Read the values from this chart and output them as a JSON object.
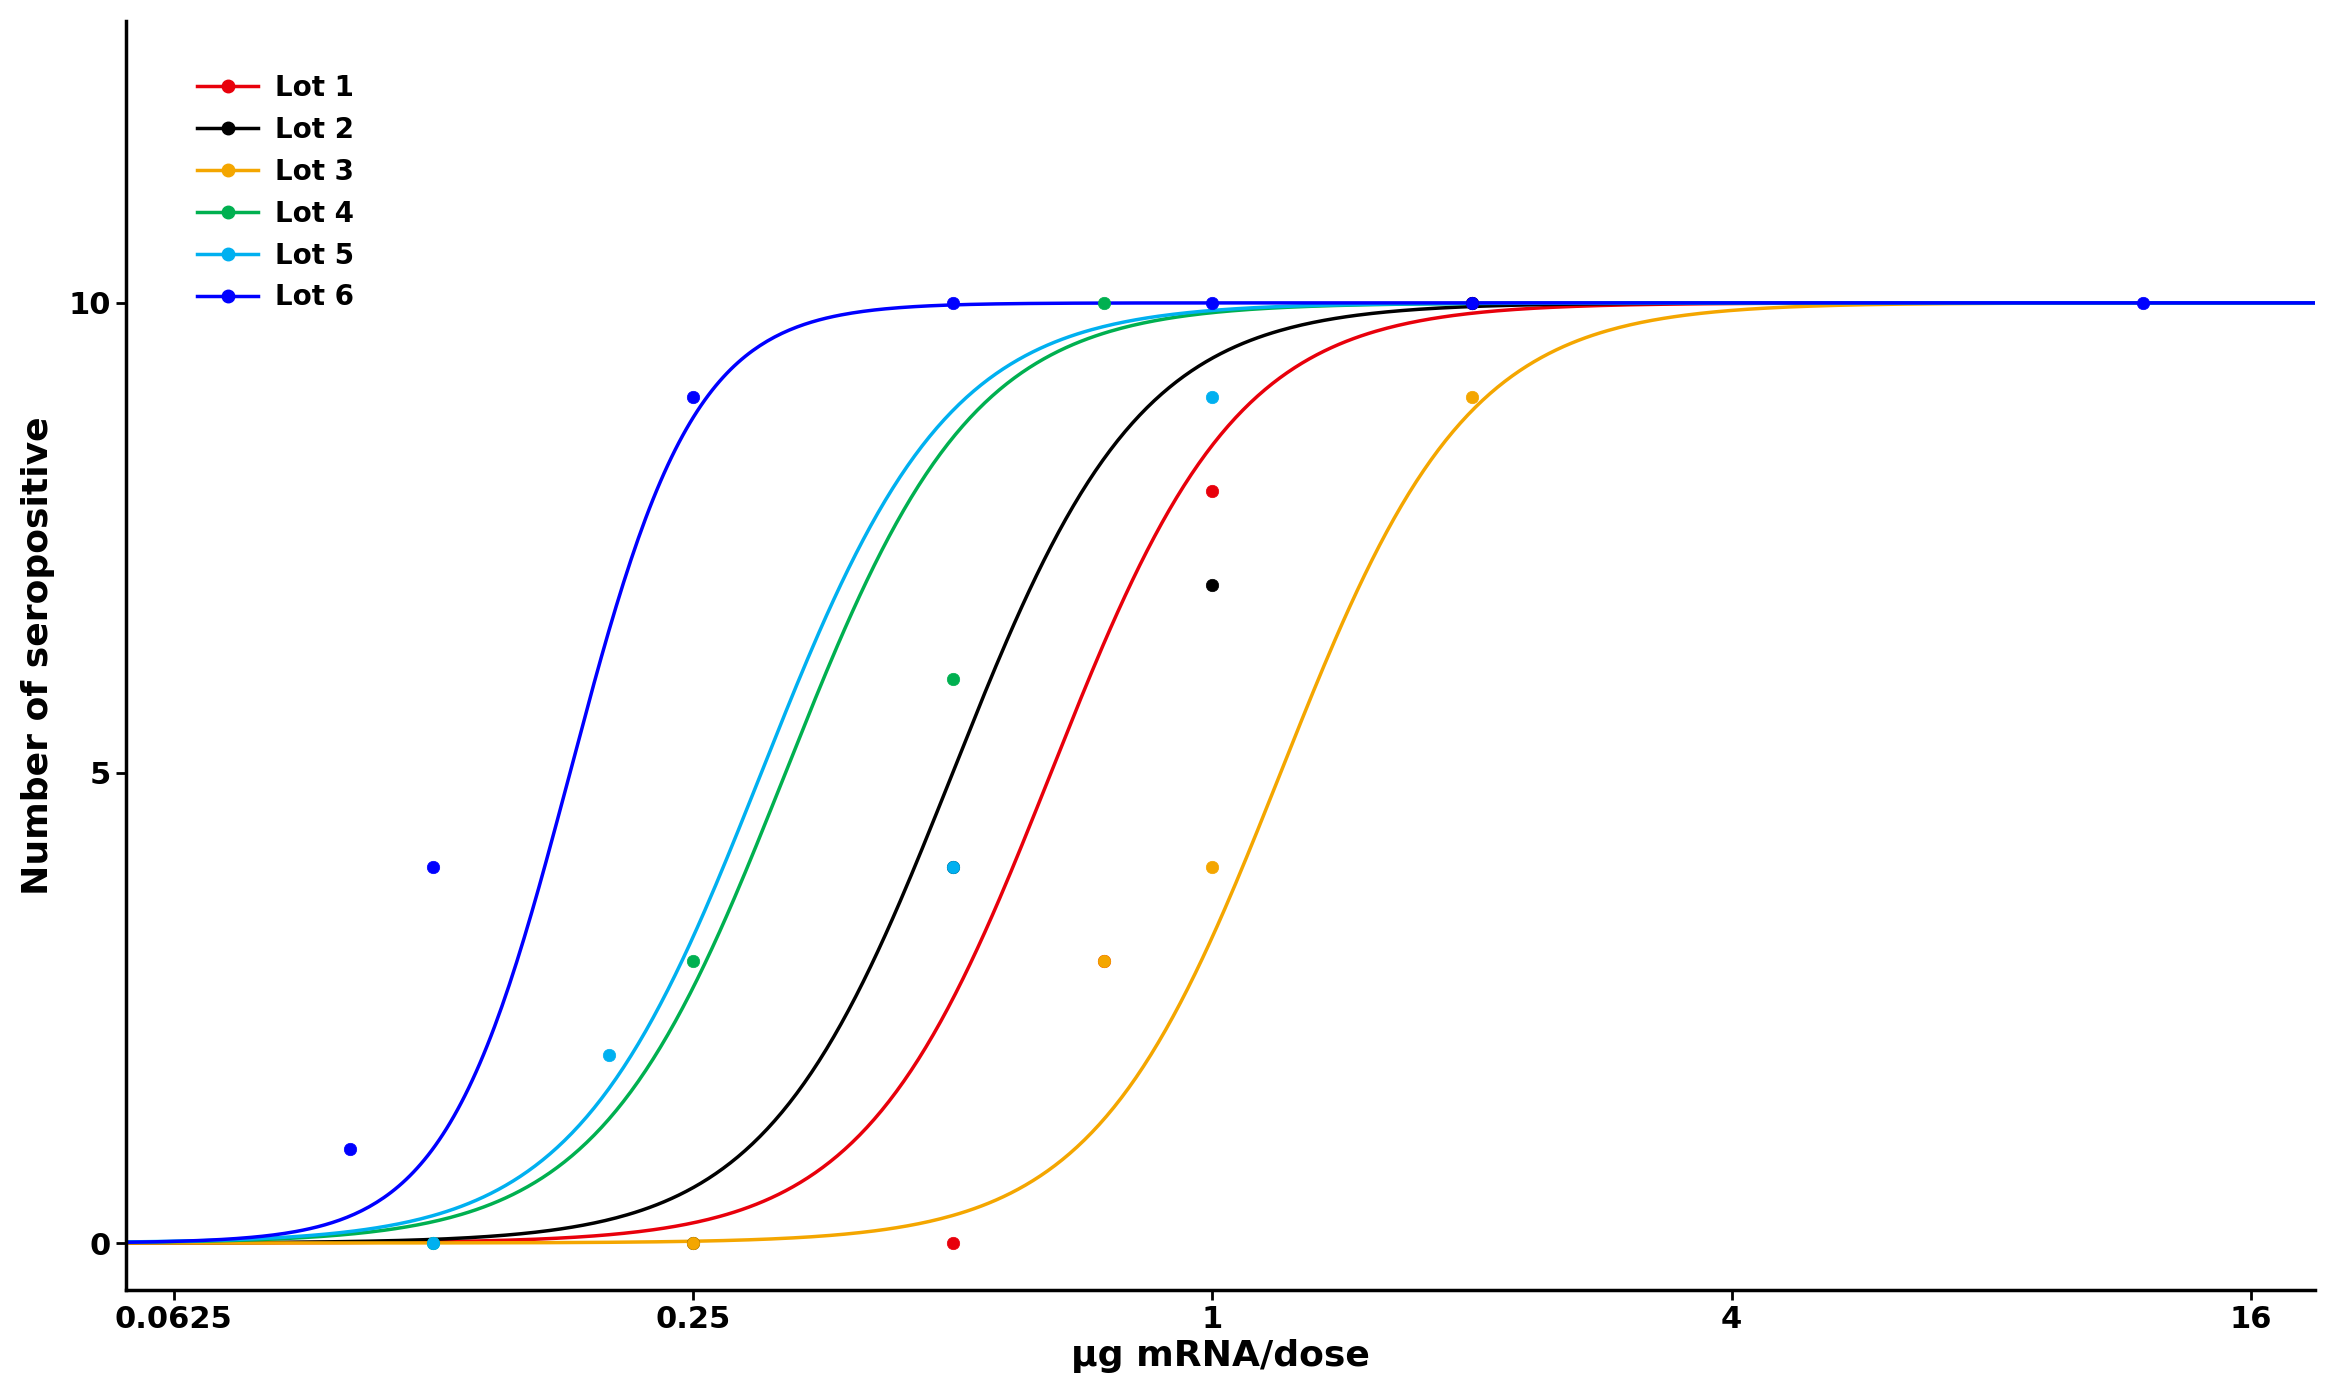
{
  "title": "",
  "xlabel": "μg mRNA/dose",
  "ylabel": "Number of seropositive",
  "xticks": [
    0.0625,
    0.25,
    1,
    4,
    16
  ],
  "xtick_labels": [
    "0.0625",
    "0.25",
    "1",
    "4",
    "16"
  ],
  "yticks": [
    0,
    5,
    10
  ],
  "background_color": "#ffffff",
  "lots": [
    {
      "label": "Lot 1",
      "color": "#e8000b",
      "scatter_x": [
        0.5,
        0.75,
        1.0,
        2.0
      ],
      "scatter_y": [
        0,
        3,
        8,
        10
      ],
      "ec50": 0.65,
      "slope": 4.0
    },
    {
      "label": "Lot 2",
      "color": "#000000",
      "scatter_x": [
        0.25,
        0.5,
        1.0,
        2.0
      ],
      "scatter_y": [
        0,
        4,
        7,
        10
      ],
      "ec50": 0.5,
      "slope": 4.0
    },
    {
      "label": "Lot 3",
      "color": "#f4a600",
      "scatter_x": [
        0.25,
        0.75,
        1.0,
        2.0
      ],
      "scatter_y": [
        0,
        3,
        4,
        9
      ],
      "ec50": 1.2,
      "slope": 4.0
    },
    {
      "label": "Lot 4",
      "color": "#00b050",
      "scatter_x": [
        0.125,
        0.25,
        0.5,
        0.75
      ],
      "scatter_y": [
        0,
        3,
        6,
        10
      ],
      "ec50": 0.32,
      "slope": 4.0
    },
    {
      "label": "Lot 5",
      "color": "#00b0f0",
      "scatter_x": [
        0.125,
        0.2,
        0.5,
        1.0
      ],
      "scatter_y": [
        0,
        2,
        4,
        9
      ],
      "ec50": 0.3,
      "slope": 4.0
    },
    {
      "label": "Lot 6",
      "color": "#0000ff",
      "scatter_x": [
        0.1,
        0.125,
        0.25,
        0.5,
        1.0,
        2.0,
        12.0
      ],
      "scatter_y": [
        1,
        4,
        9,
        10,
        10,
        10,
        10
      ],
      "ec50": 0.18,
      "slope": 6.0
    }
  ],
  "marker_size": 80,
  "line_width": 2.5,
  "axis_label_fontsize": 26,
  "tick_fontsize": 22,
  "legend_fontsize": 20
}
